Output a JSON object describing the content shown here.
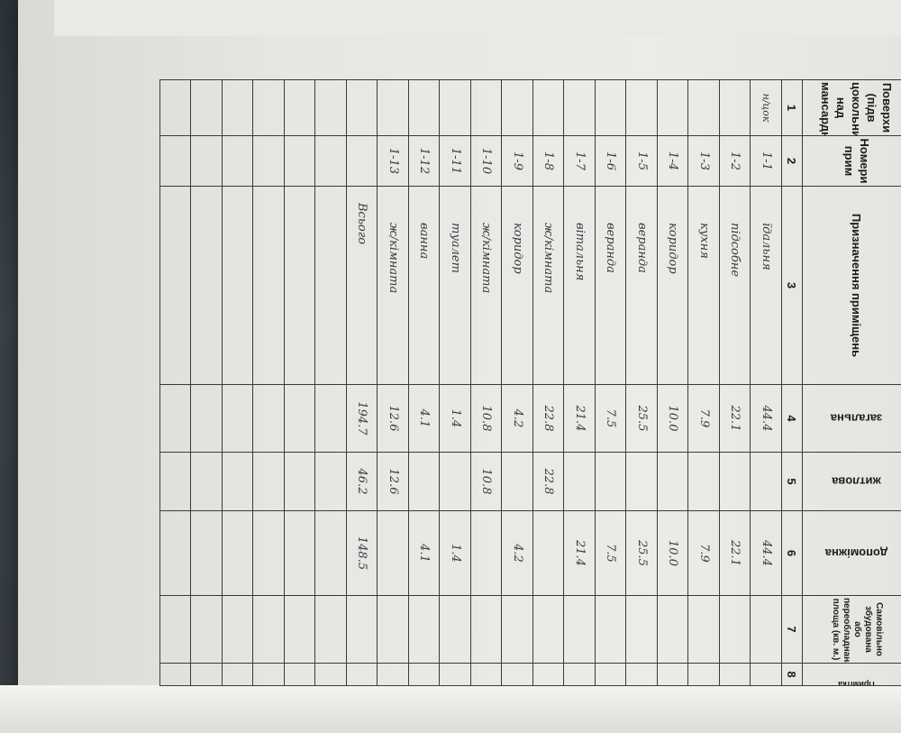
{
  "header": {
    "col1": "Поверхи (підв цокольний, над мансардн",
    "col2": "Номери прим",
    "col3": "Призначення приміщень",
    "col4": "загальна",
    "col5": "житлова",
    "col6": "допоміжна",
    "col7": "Самовільно збудована або переобладнана площа (кв. м.)",
    "col8": "Примітка"
  },
  "column_numbers": [
    "1",
    "2",
    "3",
    "4",
    "5",
    "6",
    "7",
    "8"
  ],
  "rows": [
    {
      "floor": "н/цок",
      "room": "1-1",
      "purpose": "їдальня",
      "total": "44.4",
      "living": "",
      "auxiliary": "44.4"
    },
    {
      "floor": "",
      "room": "1-2",
      "purpose": "підсобне",
      "total": "22.1",
      "living": "",
      "auxiliary": "22.1"
    },
    {
      "floor": "",
      "room": "1-3",
      "purpose": "кухня",
      "total": "7.9",
      "living": "",
      "auxiliary": "7.9"
    },
    {
      "floor": "",
      "room": "1-4",
      "purpose": "коридор",
      "total": "10.0",
      "living": "",
      "auxiliary": "10.0"
    },
    {
      "floor": "",
      "room": "1-5",
      "purpose": "веранда",
      "total": "25.5",
      "living": "",
      "auxiliary": "25.5"
    },
    {
      "floor": "",
      "room": "1-6",
      "purpose": "веранда",
      "total": "7.5",
      "living": "",
      "auxiliary": "7.5"
    },
    {
      "floor": "",
      "room": "1-7",
      "purpose": "вітальня",
      "total": "21.4",
      "living": "",
      "auxiliary": "21.4"
    },
    {
      "floor": "",
      "room": "1-8",
      "purpose": "ж/кімната",
      "total": "22.8",
      "living": "22.8",
      "auxiliary": ""
    },
    {
      "floor": "",
      "room": "1-9",
      "purpose": "коридор",
      "total": "4.2",
      "living": "",
      "auxiliary": "4.2"
    },
    {
      "floor": "",
      "room": "1-10",
      "purpose": "ж/кімната",
      "total": "10.8",
      "living": "10.8",
      "auxiliary": ""
    },
    {
      "floor": "",
      "room": "1-11",
      "purpose": "туалет",
      "total": "1.4",
      "living": "",
      "auxiliary": "1.4"
    },
    {
      "floor": "",
      "room": "1-12",
      "purpose": "ванна",
      "total": "4.1",
      "living": "",
      "auxiliary": "4.1"
    },
    {
      "floor": "",
      "room": "1-13",
      "purpose": "ж/кімната",
      "total": "12.6",
      "living": "12.6",
      "auxiliary": ""
    },
    {
      "floor": "",
      "room": "",
      "purpose": "Всього",
      "total": "194.7",
      "living": "46.2",
      "auxiliary": "148.5"
    }
  ]
}
